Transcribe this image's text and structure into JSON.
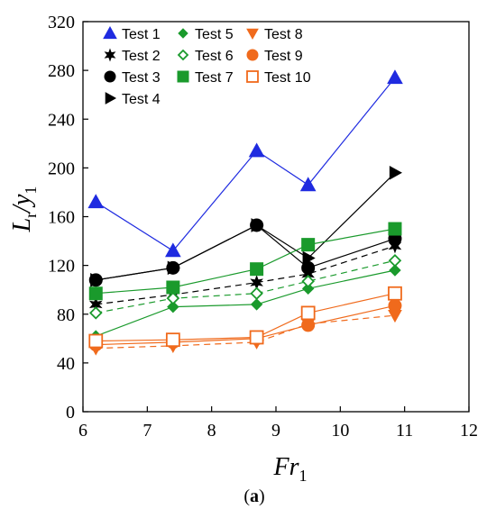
{
  "chart_data": {
    "type": "line",
    "caption_open": "(",
    "caption_letter": "a",
    "caption_close": ")",
    "xlabel_main": "Fr",
    "xlabel_sub": "1",
    "ylabel_main": "L",
    "ylabel_sub1": "r",
    "ylabel_slash": "/y",
    "ylabel_sub2": "1",
    "xlim": [
      6,
      12
    ],
    "ylim": [
      0,
      320
    ],
    "xticks": [
      "6",
      "7",
      "8",
      "9",
      "10",
      "11",
      "12"
    ],
    "yticks": [
      "0",
      "40",
      "80",
      "120",
      "160",
      "200",
      "240",
      "280",
      "320"
    ],
    "grid": false,
    "legend_position": "top-left",
    "series": [
      {
        "name": "Test 1",
        "color": "#1f2be0",
        "marker": "triangle-up",
        "filled": true,
        "dashed": false,
        "points": [
          [
            6.2,
            172
          ],
          [
            7.4,
            132
          ],
          [
            8.7,
            214
          ],
          [
            9.5,
            186
          ],
          [
            10.85,
            274
          ]
        ]
      },
      {
        "name": "Test 2",
        "color": "#000000",
        "marker": "star",
        "filled": true,
        "dashed": true,
        "points": [
          [
            6.2,
            88
          ],
          [
            7.4,
            96
          ],
          [
            8.7,
            106
          ],
          [
            9.5,
            113
          ],
          [
            10.85,
            136
          ]
        ]
      },
      {
        "name": "Test 3",
        "color": "#000000",
        "marker": "circle",
        "filled": true,
        "dashed": false,
        "points": [
          [
            6.2,
            108
          ],
          [
            7.4,
            118
          ],
          [
            8.7,
            153
          ],
          [
            9.5,
            118
          ],
          [
            10.85,
            142
          ]
        ]
      },
      {
        "name": "Test 4",
        "color": "#000000",
        "marker": "triangle-right",
        "filled": true,
        "dashed": false,
        "points": [
          [
            6.2,
            108
          ],
          [
            7.4,
            118
          ],
          [
            8.7,
            153
          ],
          [
            9.5,
            126
          ],
          [
            10.85,
            196
          ]
        ]
      },
      {
        "name": "Test 5",
        "color": "#1a9a2c",
        "marker": "diamond",
        "filled": true,
        "dashed": false,
        "points": [
          [
            6.2,
            62
          ],
          [
            7.4,
            86
          ],
          [
            8.7,
            88
          ],
          [
            9.5,
            101
          ],
          [
            10.85,
            116
          ]
        ]
      },
      {
        "name": "Test 6",
        "color": "#1a9a2c",
        "marker": "diamond",
        "filled": false,
        "dashed": true,
        "points": [
          [
            6.2,
            81
          ],
          [
            7.4,
            93
          ],
          [
            8.7,
            97
          ],
          [
            9.5,
            107
          ],
          [
            10.85,
            124
          ]
        ]
      },
      {
        "name": "Test 7",
        "color": "#1a9a2c",
        "marker": "square",
        "filled": true,
        "dashed": false,
        "points": [
          [
            6.2,
            97
          ],
          [
            7.4,
            102
          ],
          [
            8.7,
            117
          ],
          [
            9.5,
            137
          ],
          [
            10.85,
            150
          ]
        ]
      },
      {
        "name": "Test 8",
        "color": "#f06a1c",
        "marker": "triangle-down",
        "filled": true,
        "dashed": true,
        "points": [
          [
            6.2,
            52
          ],
          [
            7.4,
            54
          ],
          [
            8.7,
            57
          ],
          [
            9.5,
            72
          ],
          [
            10.85,
            79
          ]
        ]
      },
      {
        "name": "Test 9",
        "color": "#f06a1c",
        "marker": "circle",
        "filled": true,
        "dashed": false,
        "points": [
          [
            6.2,
            55
          ],
          [
            7.4,
            57
          ],
          [
            8.7,
            60
          ],
          [
            9.5,
            71
          ],
          [
            10.85,
            87
          ]
        ]
      },
      {
        "name": "Test 10",
        "color": "#f06a1c",
        "marker": "square",
        "filled": false,
        "dashed": false,
        "points": [
          [
            6.2,
            58
          ],
          [
            7.4,
            59
          ],
          [
            8.7,
            61
          ],
          [
            9.5,
            81
          ],
          [
            10.85,
            97
          ]
        ]
      }
    ]
  }
}
